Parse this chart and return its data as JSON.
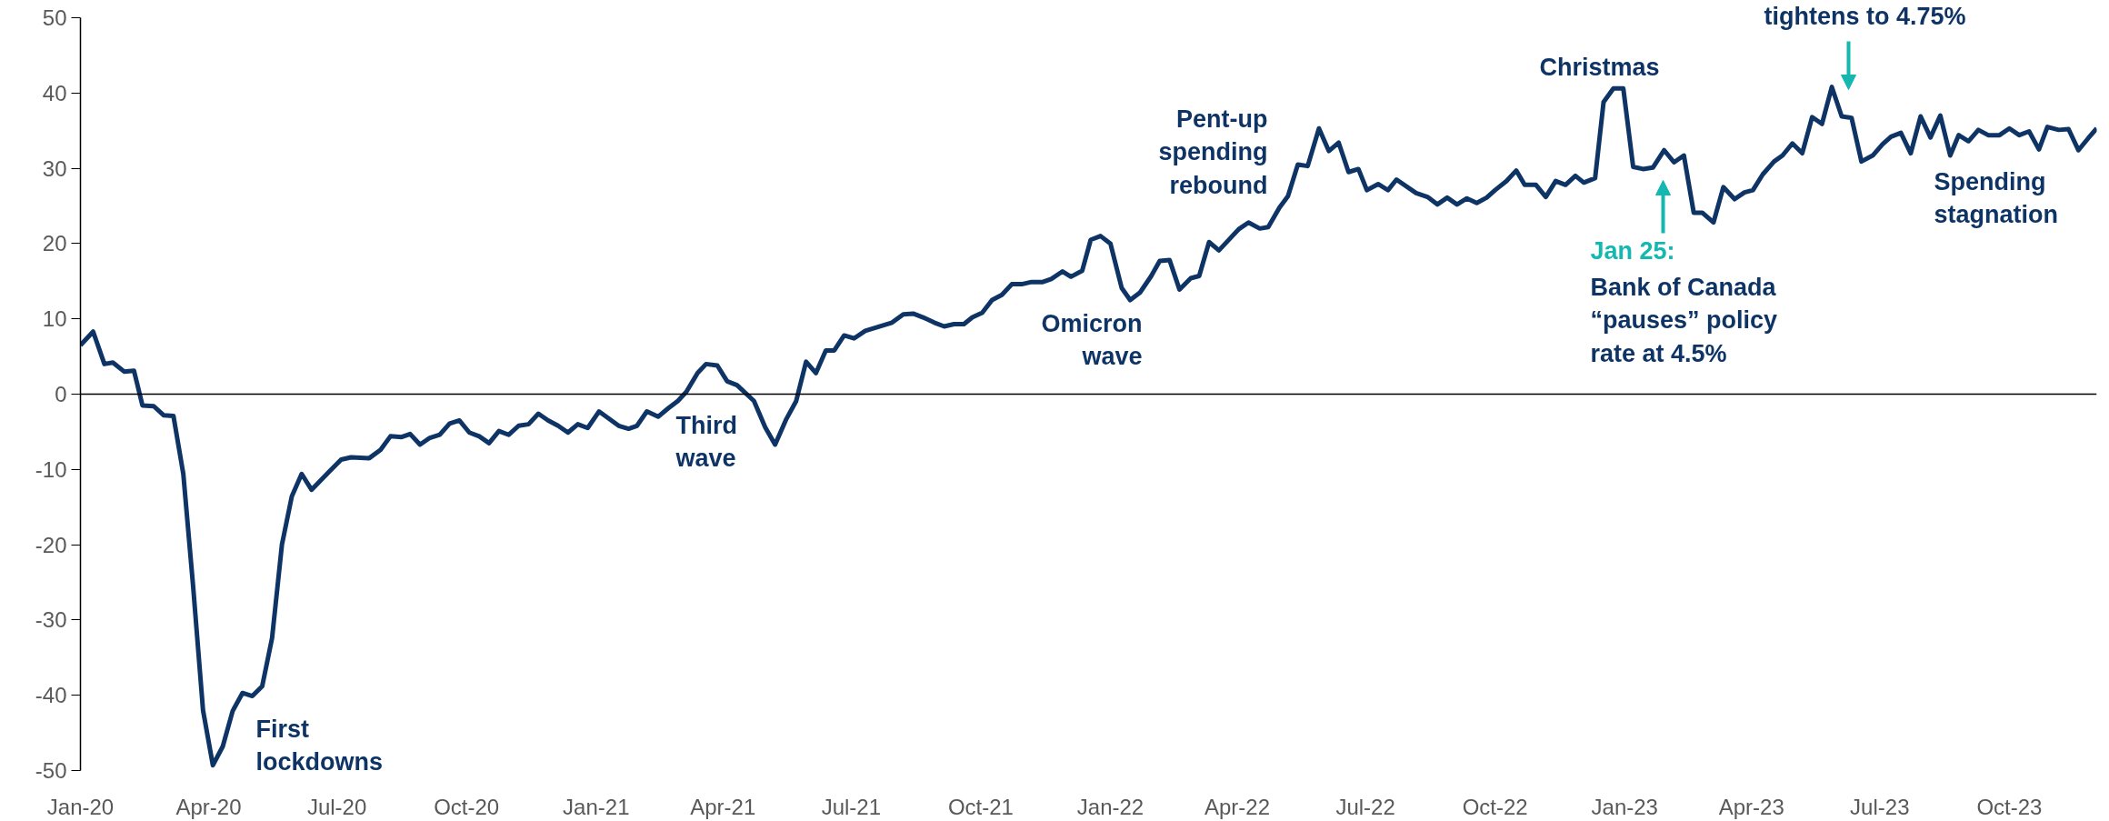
{
  "chart_data": {
    "type": "line",
    "x": [
      "2020-01-01",
      "2020-01-10",
      "2020-01-18",
      "2020-01-24",
      "2020-02-01",
      "2020-02-08",
      "2020-02-14",
      "2020-02-22",
      "2020-02-29",
      "2020-03-07",
      "2020-03-14",
      "2020-03-21",
      "2020-03-28",
      "2020-04-04",
      "2020-04-11",
      "2020-04-18",
      "2020-04-25",
      "2020-05-02",
      "2020-05-09",
      "2020-05-16",
      "2020-05-23",
      "2020-05-30",
      "2020-06-06",
      "2020-06-13",
      "2020-06-26",
      "2020-07-04",
      "2020-07-11",
      "2020-07-24",
      "2020-08-01",
      "2020-08-08",
      "2020-08-16",
      "2020-08-22",
      "2020-08-29",
      "2020-09-05",
      "2020-09-12",
      "2020-09-19",
      "2020-09-26",
      "2020-10-03",
      "2020-10-10",
      "2020-10-17",
      "2020-10-24",
      "2020-10-31",
      "2020-11-07",
      "2020-11-14",
      "2020-11-21",
      "2020-11-28",
      "2020-12-05",
      "2020-12-12",
      "2020-12-19",
      "2020-12-26",
      "2021-01-03",
      "2021-01-09",
      "2021-01-17",
      "2021-01-24",
      "2021-01-30",
      "2021-02-06",
      "2021-02-14",
      "2021-02-21",
      "2021-02-28",
      "2021-03-06",
      "2021-03-14",
      "2021-03-20",
      "2021-03-28",
      "2021-04-04",
      "2021-04-11",
      "2021-04-23",
      "2021-05-01",
      "2021-05-08",
      "2021-05-16",
      "2021-05-23",
      "2021-05-30",
      "2021-06-06",
      "2021-06-13",
      "2021-06-19",
      "2021-06-26",
      "2021-07-03",
      "2021-07-11",
      "2021-07-30",
      "2021-08-07",
      "2021-08-14",
      "2021-08-21",
      "2021-08-29",
      "2021-09-05",
      "2021-09-12",
      "2021-09-19",
      "2021-09-25",
      "2021-10-02",
      "2021-10-09",
      "2021-10-16",
      "2021-10-23",
      "2021-10-30",
      "2021-11-06",
      "2021-11-14",
      "2021-11-20",
      "2021-11-28",
      "2021-12-04",
      "2021-12-12",
      "2021-12-18",
      "2021-12-25",
      "2022-01-01",
      "2022-01-09",
      "2022-01-15",
      "2022-01-22",
      "2022-01-30",
      "2022-02-05",
      "2022-02-12",
      "2022-02-19",
      "2022-02-27",
      "2022-03-05",
      "2022-03-12",
      "2022-03-19",
      "2022-03-27",
      "2022-04-02",
      "2022-04-09",
      "2022-04-17",
      "2022-04-23",
      "2022-05-01",
      "2022-05-07",
      "2022-05-14",
      "2022-05-21",
      "2022-05-29",
      "2022-06-05",
      "2022-06-12",
      "2022-06-19",
      "2022-06-26",
      "2022-07-02",
      "2022-07-10",
      "2022-07-17",
      "2022-07-23",
      "2022-08-06",
      "2022-08-14",
      "2022-08-21",
      "2022-08-28",
      "2022-09-04",
      "2022-09-11",
      "2022-09-18",
      "2022-09-25",
      "2022-10-01",
      "2022-10-09",
      "2022-10-16",
      "2022-10-22",
      "2022-10-30",
      "2022-11-06",
      "2022-11-13",
      "2022-11-20",
      "2022-11-27",
      "2022-12-03",
      "2022-12-11",
      "2022-12-17",
      "2022-12-24",
      "2022-12-31",
      "2023-01-07",
      "2023-01-14",
      "2023-01-21",
      "2023-01-29",
      "2023-02-05",
      "2023-02-12",
      "2023-02-19",
      "2023-02-25",
      "2023-03-05",
      "2023-03-12",
      "2023-03-20",
      "2023-03-27",
      "2023-04-02",
      "2023-04-09",
      "2023-04-17",
      "2023-04-23",
      "2023-04-30",
      "2023-05-07",
      "2023-05-14",
      "2023-05-21",
      "2023-05-28",
      "2023-06-04",
      "2023-06-11",
      "2023-06-18",
      "2023-06-26",
      "2023-07-03",
      "2023-07-09",
      "2023-07-16",
      "2023-07-23",
      "2023-07-30",
      "2023-08-06",
      "2023-08-13",
      "2023-08-20",
      "2023-08-26",
      "2023-09-02",
      "2023-09-09",
      "2023-09-16",
      "2023-09-24",
      "2023-10-01",
      "2023-10-08",
      "2023-10-15",
      "2023-10-22",
      "2023-10-28",
      "2023-11-05",
      "2023-11-12",
      "2023-11-19",
      "2023-11-26",
      "2023-12-02"
    ],
    "series": [
      {
        "color": "#0e3466",
        "values": [
          6.5,
          8.3,
          4.0,
          4.2,
          3.0,
          3.1,
          -1.5,
          -1.6,
          -2.8,
          -2.9,
          -10.6,
          -25.6,
          -42,
          -49.3,
          -46.8,
          -42.1,
          -39.7,
          -40.1,
          -38.8,
          -32.4,
          -20,
          -13.6,
          -10.6,
          -12.7,
          -10.2,
          -8.7,
          -8.4,
          -8.5,
          -7.4,
          -5.6,
          -5.7,
          -5.3,
          -6.7,
          -5.8,
          -5.4,
          -3.9,
          -3.5,
          -5.1,
          -5.6,
          -6.5,
          -4.9,
          -5.4,
          -4.2,
          -4.0,
          -2.6,
          -3.5,
          -4.2,
          -5.1,
          -4.0,
          -4.5,
          -2.3,
          -3.1,
          -4.2,
          -4.6,
          -4.2,
          -2.3,
          -3.0,
          -1.9,
          -0.9,
          0.3,
          2.8,
          4.0,
          3.8,
          1.7,
          1.2,
          -0.9,
          -4.4,
          -6.7,
          -3.3,
          -0.9,
          4.3,
          2.8,
          5.8,
          5.8,
          7.8,
          7.4,
          8.4,
          9.5,
          10.6,
          10.7,
          10.2,
          9.5,
          9.0,
          9.3,
          9.3,
          10.2,
          10.8,
          12.5,
          13.2,
          14.6,
          14.6,
          14.9,
          14.9,
          15.3,
          16.3,
          15.6,
          16.4,
          20.5,
          21.0,
          20.0,
          14.1,
          12.5,
          13.5,
          15.7,
          17.7,
          17.8,
          13.9,
          15.4,
          15.7,
          20.2,
          19.1,
          20.7,
          21.9,
          22.8,
          22.0,
          22.2,
          24.8,
          26.3,
          30.5,
          30.3,
          35.3,
          32.3,
          33.4,
          29.5,
          29.9,
          27.1,
          27.9,
          27.1,
          28.5,
          26.7,
          26.2,
          25.2,
          26.1,
          25.2,
          26.0,
          25.4,
          26.1,
          27.1,
          28.3,
          29.7,
          27.8,
          27.8,
          26.2,
          28.3,
          27.8,
          29.0,
          28.1,
          28.7,
          38.8,
          40.6,
          40.6,
          30.2,
          29.9,
          30.1,
          32.4,
          30.8,
          31.7,
          24.1,
          24.1,
          22.8,
          27.5,
          25.9,
          26.8,
          27.1,
          29.2,
          30.9,
          31.7,
          33.3,
          32.0,
          36.8,
          35.9,
          40.8,
          36.9,
          36.7,
          30.9,
          31.7,
          33.2,
          34.2,
          34.7,
          32.0,
          36.9,
          34.1,
          37.0,
          31.7,
          34.4,
          33.6,
          35.1,
          34.4,
          34.4,
          35.3,
          34.4,
          34.9,
          32.5,
          35.5,
          35.1,
          35.2,
          32.4,
          34.0,
          35.3
        ]
      }
    ],
    "xlim": [
      "2020-01-01",
      "2023-12-02"
    ],
    "xticks": [
      {
        "value": "2020-01-01",
        "label": "Jan-20"
      },
      {
        "value": "2020-04-01",
        "label": "Apr-20"
      },
      {
        "value": "2020-07-01",
        "label": "Jul-20"
      },
      {
        "value": "2020-10-01",
        "label": "Oct-20"
      },
      {
        "value": "2021-01-01",
        "label": "Jan-21"
      },
      {
        "value": "2021-04-01",
        "label": "Apr-21"
      },
      {
        "value": "2021-07-01",
        "label": "Jul-21"
      },
      {
        "value": "2021-10-01",
        "label": "Oct-21"
      },
      {
        "value": "2022-01-01",
        "label": "Jan-22"
      },
      {
        "value": "2022-04-01",
        "label": "Apr-22"
      },
      {
        "value": "2022-07-01",
        "label": "Jul-22"
      },
      {
        "value": "2022-10-01",
        "label": "Oct-22"
      },
      {
        "value": "2023-01-01",
        "label": "Jan-23"
      },
      {
        "value": "2023-04-01",
        "label": "Apr-23"
      },
      {
        "value": "2023-07-01",
        "label": "Jul-23"
      },
      {
        "value": "2023-10-01",
        "label": "Oct-23"
      }
    ],
    "ylim": [
      -50,
      50
    ],
    "yticks": [
      -50,
      -40,
      -30,
      -20,
      -10,
      0,
      10,
      20,
      30,
      40,
      50
    ],
    "ref_lines": [
      {
        "axis": "y",
        "value": 0,
        "color": "#000000"
      }
    ],
    "grid": false,
    "line_style": "solid",
    "marker": "none",
    "annotations": [
      "First\nlockdowns",
      "Third\nwave",
      "Omicron\nwave",
      "Pent-up\nspending\nrebound",
      "Christmas",
      "Jan 25:",
      "Bank of Canada\n“pauses” policy\nrate at 4.5%",
      "tightens to 4.75%",
      "Spending\nstagnation"
    ]
  }
}
